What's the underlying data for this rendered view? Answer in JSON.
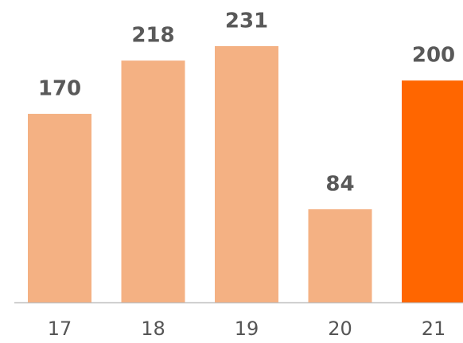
{
  "chart_data": {
    "type": "bar",
    "categories": [
      "17",
      "18",
      "19",
      "20",
      "21"
    ],
    "values": [
      170,
      218,
      231,
      84,
      200
    ],
    "colors": [
      "#f4b183",
      "#f4b183",
      "#f4b183",
      "#f4b183",
      "#ff6600"
    ],
    "ylim": [
      0,
      231
    ]
  }
}
